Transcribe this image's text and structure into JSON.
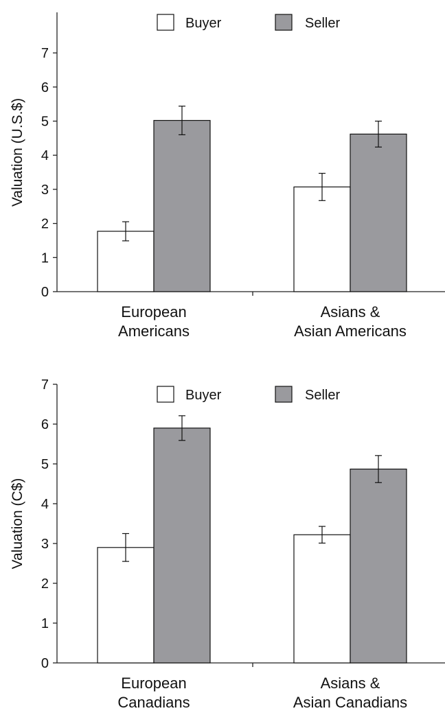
{
  "colors": {
    "buyer": "#ffffff",
    "seller": "#9a9a9e",
    "axis": "#222222"
  },
  "chart_data": [
    {
      "type": "bar",
      "ylabel": "Valuation (U.S.$)",
      "ylim": [
        0,
        7
      ],
      "yticks": [
        "0",
        "1",
        "2",
        "3",
        "4",
        "5",
        "6",
        "7"
      ],
      "categories": [
        [
          "European",
          "Americans"
        ],
        [
          "Asians &",
          "Asian Americans"
        ]
      ],
      "legend_position": "top",
      "series": [
        {
          "name": "Buyer",
          "values": [
            1.77,
            3.07
          ],
          "errors": [
            0.28,
            0.4
          ]
        },
        {
          "name": "Seller",
          "values": [
            5.02,
            4.62
          ],
          "errors": [
            0.42,
            0.38
          ]
        }
      ]
    },
    {
      "type": "bar",
      "ylabel": "Valuation (C$)",
      "ylim": [
        0,
        7
      ],
      "yticks": [
        "0",
        "1",
        "2",
        "3",
        "4",
        "5",
        "6",
        "7"
      ],
      "categories": [
        [
          "European",
          "Canadians"
        ],
        [
          "Asians &",
          "Asian Canadians"
        ]
      ],
      "legend_position": "top",
      "series": [
        {
          "name": "Buyer",
          "values": [
            2.9,
            3.22
          ],
          "errors": [
            0.35,
            0.21
          ]
        },
        {
          "name": "Seller",
          "values": [
            5.9,
            4.87
          ],
          "errors": [
            0.31,
            0.34
          ]
        }
      ]
    }
  ]
}
